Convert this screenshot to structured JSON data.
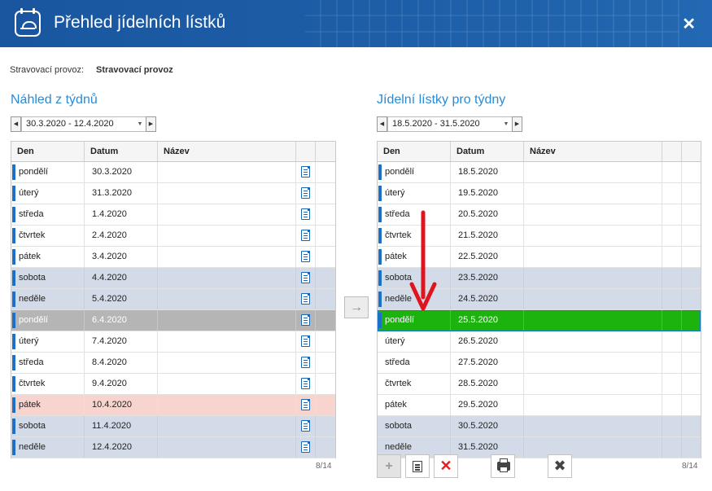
{
  "window": {
    "title": "Přehled jídelních lístků",
    "close_symbol": "✕"
  },
  "provoz": {
    "label": "Stravovací provoz:",
    "value": "Stravovací provoz"
  },
  "left": {
    "title": "Náhled z týdnů",
    "week_range": "30.3.2020 - 12.4.2020",
    "columns": [
      "Den",
      "Datum",
      "Název"
    ],
    "rows": [
      {
        "day": "pondělí",
        "date": "30.3.2020",
        "style": "normal"
      },
      {
        "day": "úterý",
        "date": "31.3.2020",
        "style": "normal"
      },
      {
        "day": "středa",
        "date": "1.4.2020",
        "style": "normal"
      },
      {
        "day": "čtvrtek",
        "date": "2.4.2020",
        "style": "normal"
      },
      {
        "day": "pátek",
        "date": "3.4.2020",
        "style": "normal"
      },
      {
        "day": "sobota",
        "date": "4.4.2020",
        "style": "weekend"
      },
      {
        "day": "neděle",
        "date": "5.4.2020",
        "style": "weekend"
      },
      {
        "day": "pondělí",
        "date": "6.4.2020",
        "style": "gray"
      },
      {
        "day": "úterý",
        "date": "7.4.2020",
        "style": "normal"
      },
      {
        "day": "středa",
        "date": "8.4.2020",
        "style": "normal"
      },
      {
        "day": "čtvrtek",
        "date": "9.4.2020",
        "style": "normal"
      },
      {
        "day": "pátek",
        "date": "10.4.2020",
        "style": "pink"
      },
      {
        "day": "sobota",
        "date": "11.4.2020",
        "style": "weekend"
      },
      {
        "day": "neděle",
        "date": "12.4.2020",
        "style": "weekend"
      }
    ],
    "counter": "8/14"
  },
  "right": {
    "title": "Jídelní lístky pro týdny",
    "week_range": "18.5.2020 - 31.5.2020",
    "columns": [
      "Den",
      "Datum",
      "Název"
    ],
    "rows": [
      {
        "day": "pondělí",
        "date": "18.5.2020",
        "style": "normal"
      },
      {
        "day": "úterý",
        "date": "19.5.2020",
        "style": "normal"
      },
      {
        "day": "středa",
        "date": "20.5.2020",
        "style": "normal"
      },
      {
        "day": "čtvrtek",
        "date": "21.5.2020",
        "style": "normal"
      },
      {
        "day": "pátek",
        "date": "22.5.2020",
        "style": "normal"
      },
      {
        "day": "sobota",
        "date": "23.5.2020",
        "style": "weekend"
      },
      {
        "day": "neděle",
        "date": "24.5.2020",
        "style": "weekend"
      },
      {
        "day": "pondělí",
        "date": "25.5.2020",
        "style": "green"
      },
      {
        "day": "úterý",
        "date": "26.5.2020",
        "style": "plain"
      },
      {
        "day": "středa",
        "date": "27.5.2020",
        "style": "plain"
      },
      {
        "day": "čtvrtek",
        "date": "28.5.2020",
        "style": "plain"
      },
      {
        "day": "pátek",
        "date": "29.5.2020",
        "style": "plain"
      },
      {
        "day": "sobota",
        "date": "30.5.2020",
        "style": "weekend-plain"
      },
      {
        "day": "neděle",
        "date": "31.5.2020",
        "style": "weekend-plain"
      }
    ],
    "counter": "8/14"
  },
  "toolbar": {
    "add_symbol": "+",
    "delete_symbol": "✕",
    "tools_symbol": "✖",
    "move_symbol": "→"
  },
  "colors": {
    "titlebar": "#1c5da5",
    "accent_title": "#2a8ad4",
    "marker": "#1f6fc4",
    "weekend": "#d2dbe7",
    "selected_gray": "#b5b5b5",
    "friday_pink": "#f7d4ce",
    "target_green": "#1cb30e",
    "arrow_red": "#e0141e"
  }
}
